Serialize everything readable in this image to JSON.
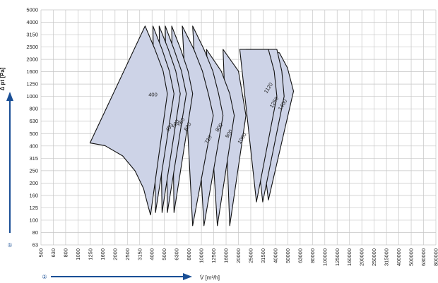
{
  "chart_data": {
    "type": "area",
    "xlabel": "V̇ [m³/h]",
    "ylabel": "Δ pt [Pa]",
    "xscale": "log",
    "yscale": "log",
    "grid": true,
    "x_ticks": [
      "500",
      "630",
      "800",
      "1000",
      "1250",
      "1600",
      "2000",
      "2500",
      "3150",
      "4000",
      "5000",
      "6300",
      "8000",
      "10000",
      "12500",
      "16000",
      "20000",
      "25000",
      "31500",
      "40000",
      "50000",
      "63000",
      "80000",
      "100000",
      "125000",
      "160000",
      "200000",
      "250000",
      "315000",
      "400000",
      "500000",
      "630000",
      "800000"
    ],
    "y_ticks": [
      "63",
      "80",
      "100",
      "125",
      "160",
      "200",
      "250",
      "315",
      "400",
      "500",
      "630",
      "800",
      "1000",
      "1250",
      "1600",
      "2000",
      "2500",
      "3150",
      "4000",
      "5000"
    ],
    "markers": {
      "y_axis": "①",
      "x_axis": "②"
    },
    "colors": {
      "fill": "#cdd3e7",
      "stroke": "#111111",
      "axis_arrow": "#1a4f96",
      "grid": "#c6c6c6"
    },
    "series": [
      {
        "name": "400",
        "label_at": [
          4050,
          1000
        ],
        "points": [
          [
            1250,
            420
          ],
          [
            1650,
            400
          ],
          [
            2300,
            330
          ],
          [
            2900,
            250
          ],
          [
            3400,
            180
          ],
          [
            3700,
            130
          ],
          [
            3870,
            110
          ],
          [
            5300,
            1050
          ],
          [
            4900,
            1600
          ],
          [
            4200,
            2400
          ],
          [
            3500,
            3700
          ],
          [
            1250,
            420
          ]
        ]
      },
      {
        "name": "450",
        "label_at": [
          5650,
          550
        ],
        "points": [
          [
            4250,
            115
          ],
          [
            6000,
            1050
          ],
          [
            5500,
            1600
          ],
          [
            4800,
            2400
          ],
          [
            4050,
            3700
          ],
          [
            4250,
            115
          ]
        ]
      },
      {
        "name": "500",
        "label_at": [
          6350,
          590
        ],
        "points": [
          [
            4800,
            115
          ],
          [
            6750,
            1050
          ],
          [
            6200,
            1600
          ],
          [
            5400,
            2400
          ],
          [
            4550,
            3700
          ],
          [
            4800,
            115
          ]
        ]
      },
      {
        "name": "560",
        "label_at": [
          7050,
          610
        ],
        "points": [
          [
            5300,
            115
          ],
          [
            7550,
            1050
          ],
          [
            6900,
            1600
          ],
          [
            6000,
            2400
          ],
          [
            5100,
            3700
          ],
          [
            5300,
            115
          ]
        ]
      },
      {
        "name": "630",
        "label_at": [
          7950,
          560
        ],
        "points": [
          [
            6000,
            115
          ],
          [
            8500,
            1050
          ],
          [
            7800,
            1600
          ],
          [
            6800,
            2400
          ],
          [
            5750,
            3700
          ],
          [
            6000,
            115
          ]
        ]
      },
      {
        "name": "710",
        "label_at": [
          11700,
          440
        ],
        "points": [
          [
            8500,
            90
          ],
          [
            12500,
            700
          ],
          [
            11400,
            1050
          ],
          [
            10200,
            1600
          ],
          [
            8700,
            2400
          ],
          [
            7000,
            3700
          ],
          [
            8500,
            90
          ]
        ]
      },
      {
        "name": "800",
        "label_at": [
          14300,
          550
        ],
        "points": [
          [
            10500,
            90
          ],
          [
            15000,
            700
          ],
          [
            13800,
            1050
          ],
          [
            12400,
            1600
          ],
          [
            10500,
            2400
          ],
          [
            8500,
            3700
          ],
          [
            10500,
            90
          ]
        ]
      },
      {
        "name": "900",
        "label_at": [
          17200,
          490
        ],
        "points": [
          [
            13500,
            90
          ],
          [
            18500,
            700
          ],
          [
            17000,
            1050
          ],
          [
            14500,
            1600
          ],
          [
            11000,
            2400
          ],
          [
            13500,
            90
          ]
        ]
      },
      {
        "name": "1000",
        "label_at": [
          22000,
          450
        ],
        "points": [
          [
            17000,
            90
          ],
          [
            23000,
            700
          ],
          [
            21500,
            1050
          ],
          [
            20000,
            1600
          ],
          [
            15000,
            2400
          ],
          [
            17000,
            90
          ]
        ]
      },
      {
        "name": "1120",
        "label_at": [
          36000,
          1150
        ],
        "points": [
          [
            28000,
            140
          ],
          [
            41000,
            1000
          ],
          [
            39000,
            1600
          ],
          [
            35000,
            2400
          ],
          [
            20500,
            2400
          ],
          [
            28000,
            140
          ]
        ]
      },
      {
        "name": "1250",
        "label_at": [
          40000,
          880
        ],
        "points": [
          [
            31500,
            140
          ],
          [
            47000,
            1000
          ],
          [
            45000,
            1600
          ],
          [
            41000,
            2400
          ],
          [
            23000,
            2400
          ],
          [
            31500,
            140
          ]
        ]
      },
      {
        "name": "1400",
        "label_at": [
          47000,
          840
        ],
        "points": [
          [
            35000,
            145
          ],
          [
            56000,
            1100
          ],
          [
            50000,
            1700
          ],
          [
            43000,
            2250
          ],
          [
            25000,
            2400
          ],
          [
            35000,
            145
          ]
        ]
      }
    ]
  }
}
